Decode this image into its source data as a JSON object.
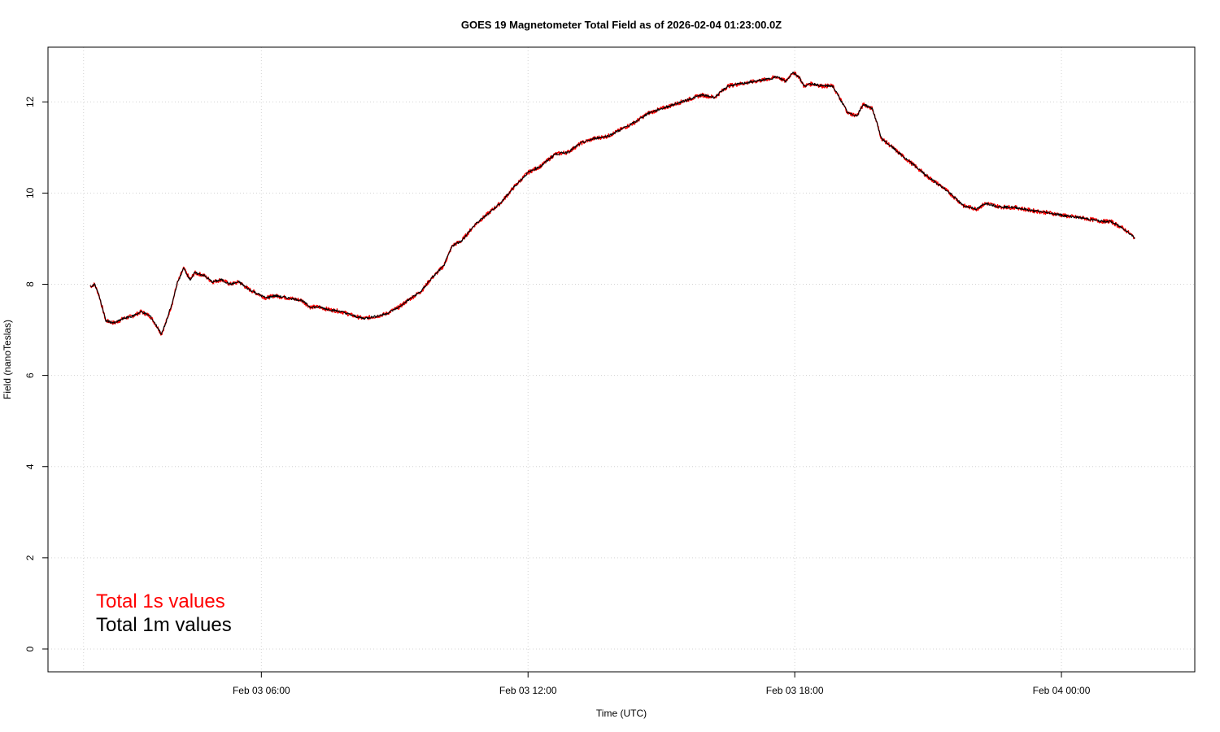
{
  "chart_data": {
    "type": "line",
    "title": "GOES 19 Magnetometer Total Field as of  2026-02-04 01:23:00.0Z",
    "xlabel": "Time (UTC)",
    "ylabel": "Field (nanoTeslas)",
    "x_unit": "hours",
    "xlim": [
      -0.3,
      25.5
    ],
    "ylim": [
      -0.5,
      13.2
    ],
    "x_ticks": [
      {
        "x": 4.5,
        "label": "Feb 03 06:00"
      },
      {
        "x": 10.5,
        "label": "Feb 03 12:00"
      },
      {
        "x": 16.5,
        "label": "Feb 03 18:00"
      },
      {
        "x": 22.5,
        "label": "Feb 04 00:00"
      }
    ],
    "y_ticks": [
      0,
      2,
      4,
      6,
      8,
      10,
      12
    ],
    "grid": true,
    "legend_position": "bottom-left",
    "series": [
      {
        "name": "Total 1s values",
        "color": "#ff0000",
        "points": [
          [
            0.65,
            7.95
          ],
          [
            0.75,
            8.0
          ],
          [
            0.85,
            7.75
          ],
          [
            1.0,
            7.2
          ],
          [
            1.2,
            7.15
          ],
          [
            1.4,
            7.25
          ],
          [
            1.6,
            7.3
          ],
          [
            1.8,
            7.4
          ],
          [
            2.0,
            7.3
          ],
          [
            2.1,
            7.15
          ],
          [
            2.2,
            7.0
          ],
          [
            2.25,
            6.9
          ],
          [
            2.35,
            7.15
          ],
          [
            2.5,
            7.6
          ],
          [
            2.6,
            8.0
          ],
          [
            2.75,
            8.35
          ],
          [
            2.9,
            8.1
          ],
          [
            3.0,
            8.25
          ],
          [
            3.2,
            8.2
          ],
          [
            3.4,
            8.05
          ],
          [
            3.6,
            8.1
          ],
          [
            3.8,
            8.0
          ],
          [
            4.0,
            8.05
          ],
          [
            4.2,
            7.9
          ],
          [
            4.4,
            7.8
          ],
          [
            4.6,
            7.7
          ],
          [
            4.8,
            7.75
          ],
          [
            5.1,
            7.7
          ],
          [
            5.4,
            7.65
          ],
          [
            5.6,
            7.5
          ],
          [
            5.8,
            7.5
          ],
          [
            6.0,
            7.45
          ],
          [
            6.3,
            7.4
          ],
          [
            6.6,
            7.3
          ],
          [
            6.8,
            7.25
          ],
          [
            7.1,
            7.3
          ],
          [
            7.3,
            7.35
          ],
          [
            7.6,
            7.5
          ],
          [
            7.8,
            7.65
          ],
          [
            8.1,
            7.85
          ],
          [
            8.3,
            8.1
          ],
          [
            8.6,
            8.4
          ],
          [
            8.8,
            8.85
          ],
          [
            9.0,
            8.95
          ],
          [
            9.3,
            9.3
          ],
          [
            9.6,
            9.55
          ],
          [
            9.9,
            9.8
          ],
          [
            10.2,
            10.15
          ],
          [
            10.5,
            10.45
          ],
          [
            10.8,
            10.6
          ],
          [
            11.1,
            10.85
          ],
          [
            11.4,
            10.9
          ],
          [
            11.7,
            11.1
          ],
          [
            12.0,
            11.2
          ],
          [
            12.3,
            11.25
          ],
          [
            12.6,
            11.4
          ],
          [
            12.9,
            11.55
          ],
          [
            13.2,
            11.75
          ],
          [
            13.5,
            11.85
          ],
          [
            13.8,
            11.95
          ],
          [
            14.1,
            12.05
          ],
          [
            14.4,
            12.15
          ],
          [
            14.7,
            12.1
          ],
          [
            15.0,
            12.35
          ],
          [
            15.3,
            12.4
          ],
          [
            15.6,
            12.45
          ],
          [
            15.9,
            12.5
          ],
          [
            16.1,
            12.55
          ],
          [
            16.3,
            12.45
          ],
          [
            16.45,
            12.65
          ],
          [
            16.6,
            12.55
          ],
          [
            16.7,
            12.35
          ],
          [
            16.9,
            12.4
          ],
          [
            17.1,
            12.35
          ],
          [
            17.35,
            12.35
          ],
          [
            17.5,
            12.1
          ],
          [
            17.7,
            11.75
          ],
          [
            17.9,
            11.7
          ],
          [
            18.05,
            11.95
          ],
          [
            18.25,
            11.85
          ],
          [
            18.45,
            11.2
          ],
          [
            18.7,
            11.0
          ],
          [
            19.0,
            10.75
          ],
          [
            19.2,
            10.6
          ],
          [
            19.5,
            10.35
          ],
          [
            19.8,
            10.15
          ],
          [
            20.1,
            9.9
          ],
          [
            20.3,
            9.72
          ],
          [
            20.6,
            9.65
          ],
          [
            20.8,
            9.78
          ],
          [
            21.1,
            9.7
          ],
          [
            21.5,
            9.68
          ],
          [
            21.8,
            9.62
          ],
          [
            22.2,
            9.57
          ],
          [
            22.6,
            9.5
          ],
          [
            23.0,
            9.45
          ],
          [
            23.4,
            9.38
          ],
          [
            23.6,
            9.38
          ],
          [
            23.9,
            9.22
          ],
          [
            24.15,
            9.02
          ]
        ]
      },
      {
        "name": "Total 1m values",
        "color": "#000000"
      }
    ]
  }
}
